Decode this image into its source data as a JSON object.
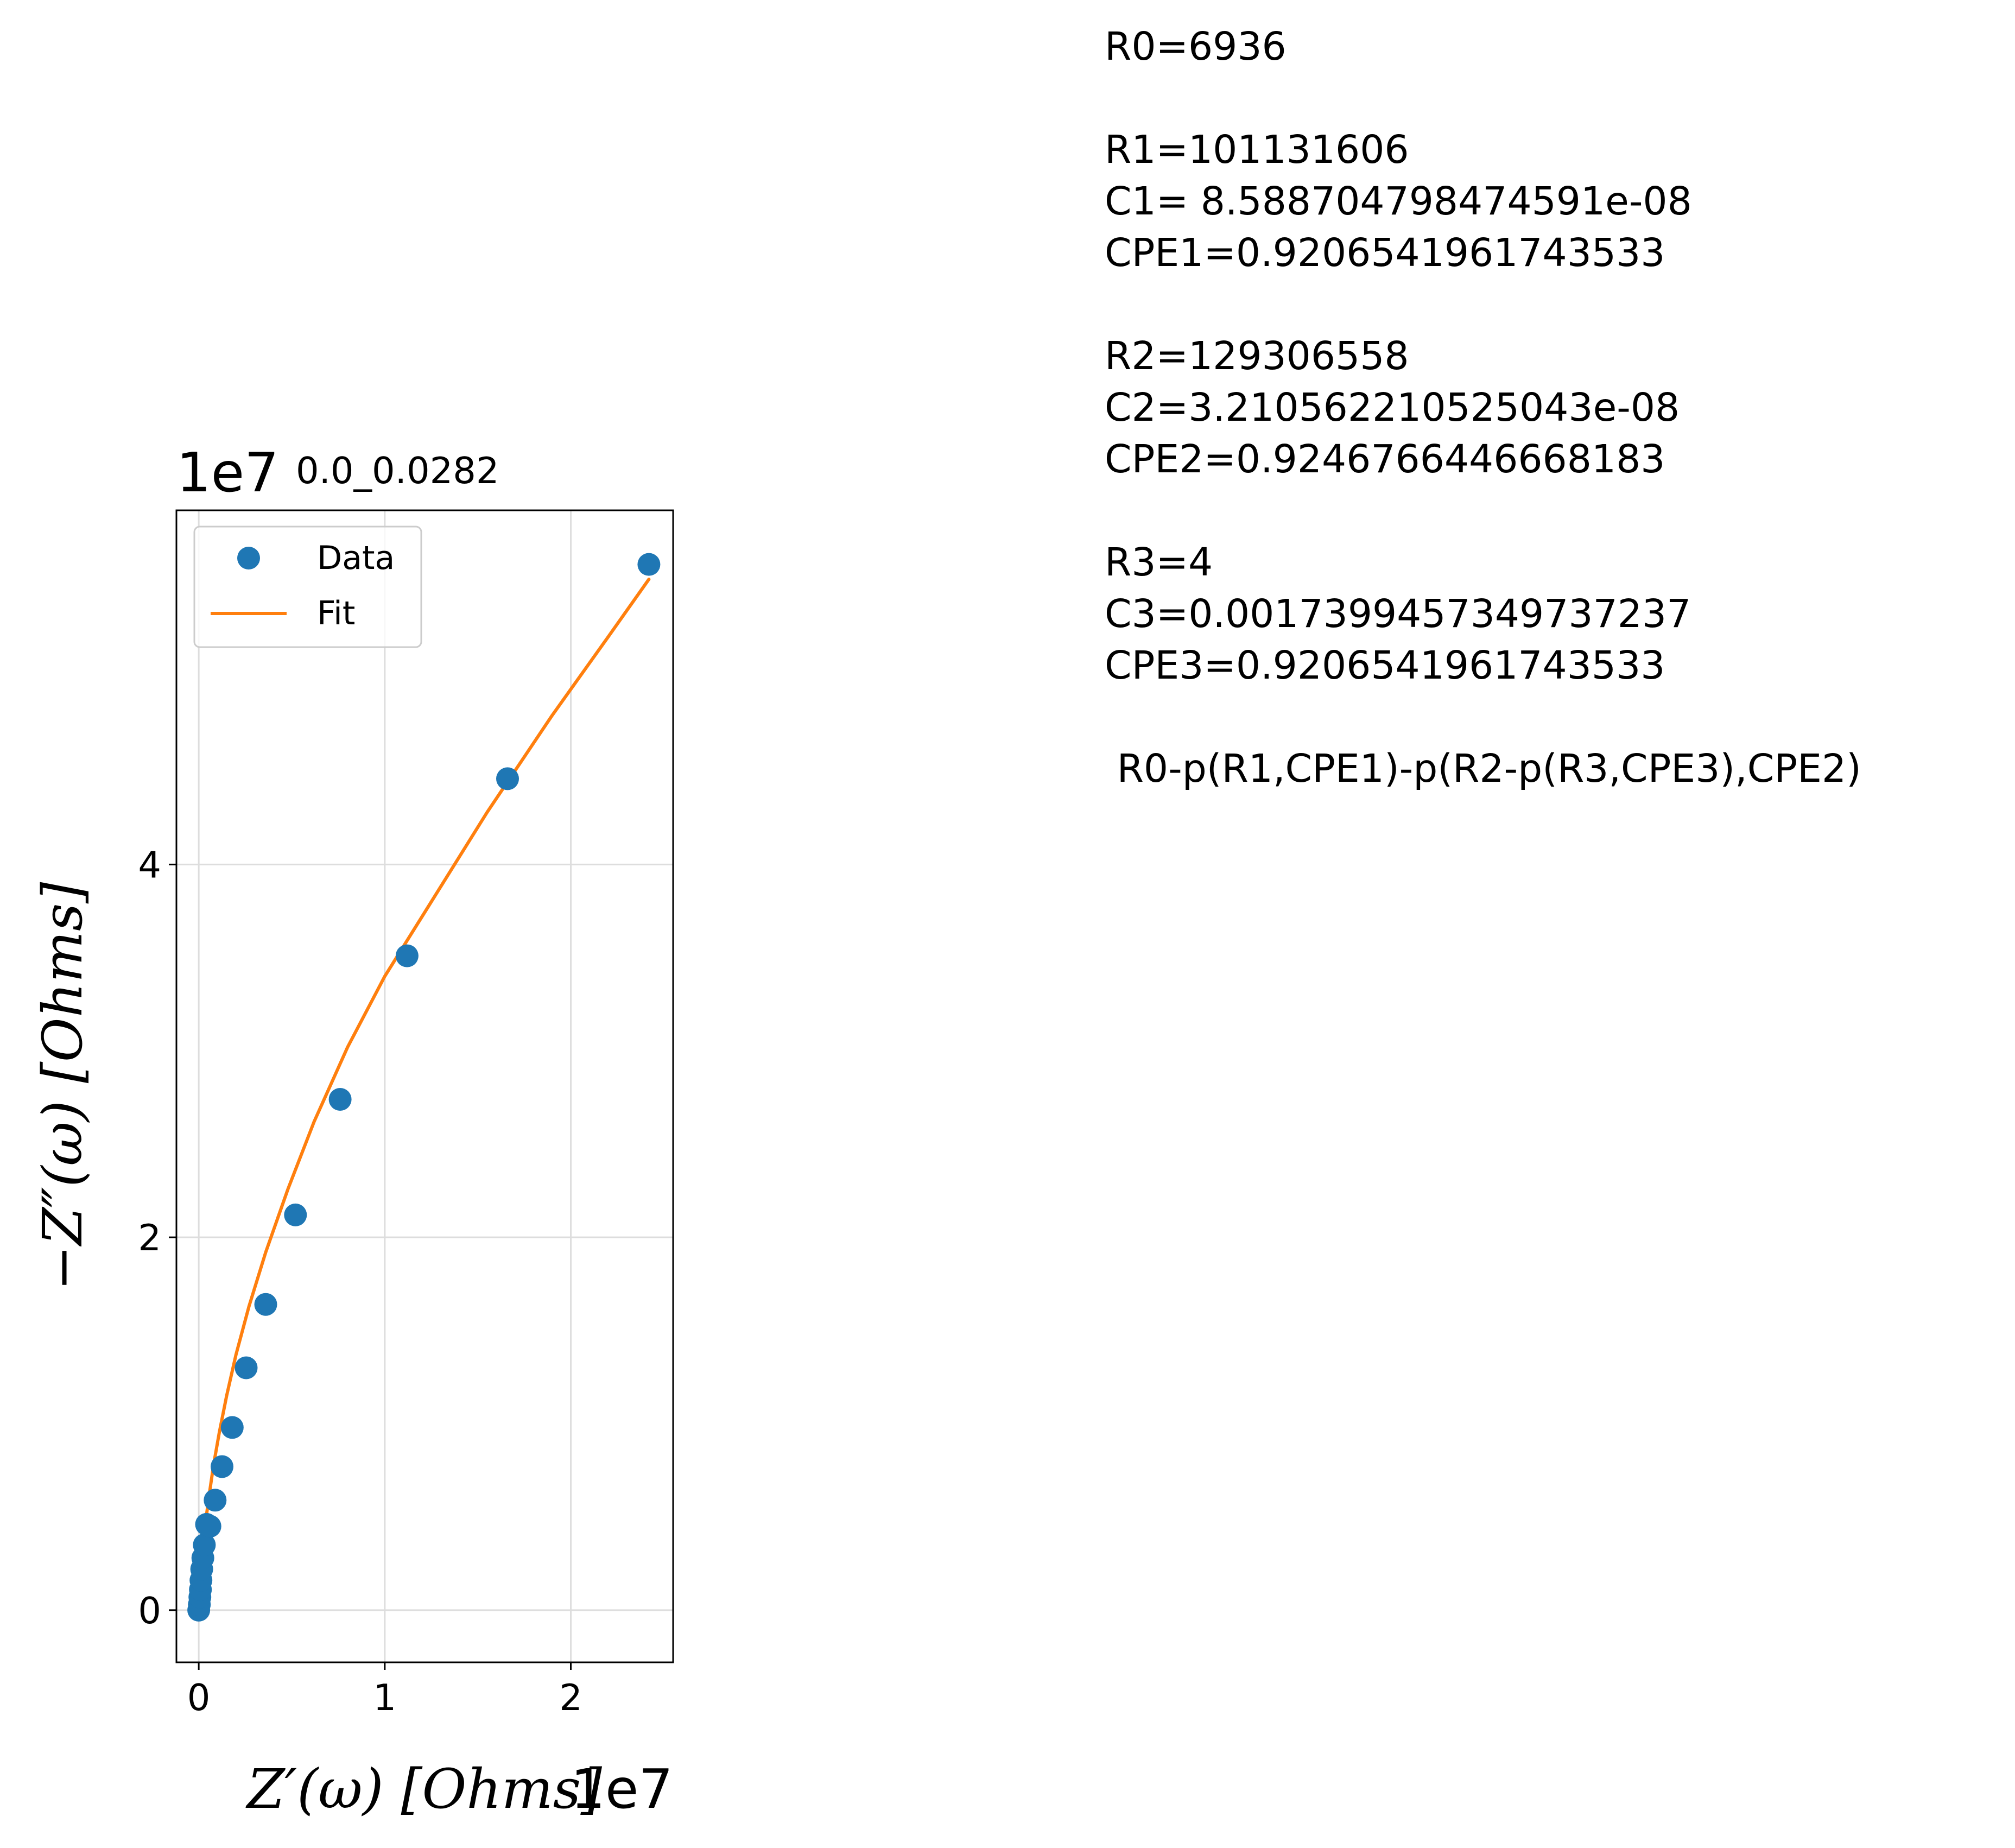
{
  "chart_data": {
    "type": "scatter",
    "title": "0.0_0.0282",
    "xlabel": "Z′(ω) [Ohms]",
    "ylabel": "−Z″(ω) [Ohms]",
    "x_offset_label": "1e7",
    "y_offset_label": "1e7",
    "x_scale": 10000000,
    "y_scale": 10000000,
    "xlim": [
      -0.12,
      2.55
    ],
    "ylim": [
      -0.28,
      5.9
    ],
    "xticks": [
      0,
      1,
      2
    ],
    "yticks": [
      0,
      2,
      4
    ],
    "grid": true,
    "legend": {
      "position": "top-left",
      "entries": [
        "Data",
        "Fit"
      ]
    },
    "colors": {
      "data": "#1f77b4",
      "fit": "#ff7f0e"
    },
    "series": [
      {
        "name": "Data",
        "style": "markers",
        "x": [
          0.0,
          0.003,
          0.006,
          0.009,
          0.012,
          0.016,
          0.022,
          0.03,
          0.042,
          0.06,
          0.088,
          0.125,
          0.18,
          0.255,
          0.36,
          0.52,
          0.76,
          1.12,
          1.66,
          2.42
        ],
        "y": [
          0.0,
          0.03,
          0.07,
          0.11,
          0.16,
          0.22,
          0.28,
          0.35,
          0.46,
          0.45,
          0.59,
          0.77,
          0.98,
          1.3,
          1.64,
          2.12,
          2.74,
          3.51,
          4.46,
          5.61
        ]
      },
      {
        "name": "Fit",
        "style": "line",
        "x": [
          0.0,
          0.002,
          0.005,
          0.01,
          0.02,
          0.035,
          0.055,
          0.08,
          0.11,
          0.15,
          0.2,
          0.27,
          0.36,
          0.48,
          0.62,
          0.8,
          1.0,
          1.25,
          1.55,
          1.9,
          2.2,
          2.42
        ],
        "y": [
          0.0,
          0.06,
          0.12,
          0.2,
          0.32,
          0.46,
          0.61,
          0.78,
          0.95,
          1.15,
          1.37,
          1.63,
          1.92,
          2.26,
          2.62,
          3.02,
          3.4,
          3.8,
          4.28,
          4.8,
          5.22,
          5.53
        ]
      }
    ]
  },
  "fit_parameters": {
    "lines": [
      "R0=6936",
      "",
      "R1=101131606",
      "C1= 8.588704798474591e-08",
      "CPE1=0.9206541961743533",
      "",
      "R2=129306558",
      "C2=3.210562210525043e-08",
      "CPE2=0.9246766446668183",
      "",
      "R3=4",
      "C3=0.0017399457349737237",
      "CPE3=0.9206541961743533",
      "",
      " R0-p(R1,CPE1)-p(R2-p(R3,CPE3),CPE2)"
    ]
  }
}
